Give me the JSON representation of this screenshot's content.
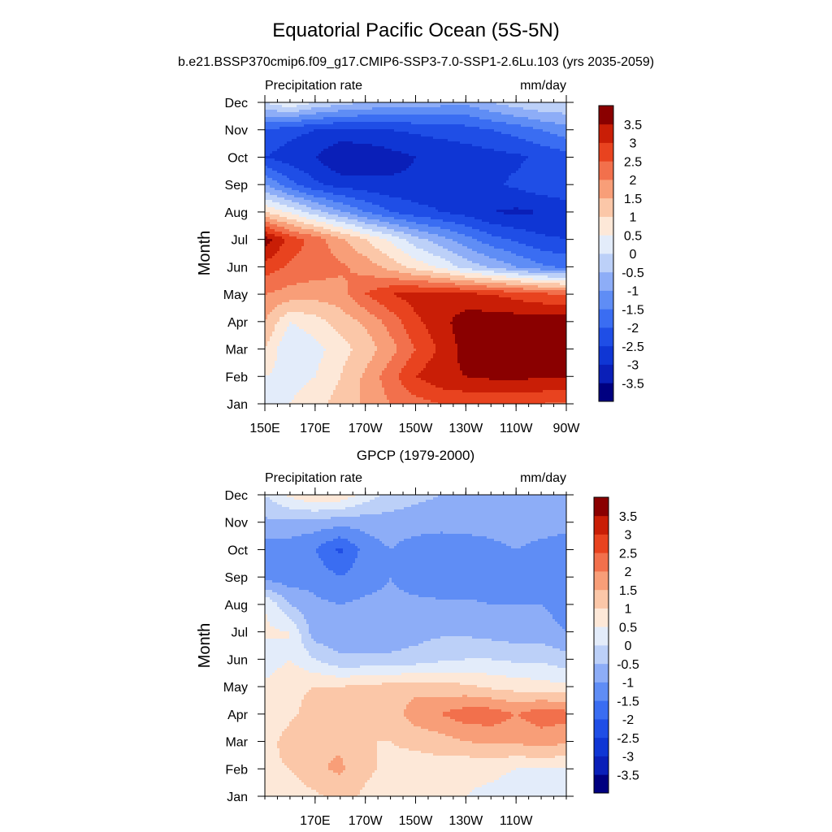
{
  "figure": {
    "title": "Equatorial Pacific Ocean (5S-5N)",
    "subtitle": "b.e21.BSSP370cmip6.f09_g17.CMIP6-SSP3-7.0-SSP1-2.6Lu.103 (yrs 2035-2059)"
  },
  "chart_data": [
    {
      "type": "heatmap",
      "panel": "model",
      "title": "",
      "left_label": "Precipitation rate",
      "right_label": "mm/day",
      "ylabel": "Month",
      "xlabel": "",
      "x_range": [
        150,
        270
      ],
      "x_ticks": [
        150,
        170,
        190,
        210,
        230,
        250,
        270
      ],
      "x_tick_labels": [
        "150E",
        "170E",
        "170W",
        "150W",
        "130W",
        "110W",
        "90W"
      ],
      "y_tick_labels": [
        "Jan",
        "Feb",
        "Mar",
        "Apr",
        "May",
        "Jun",
        "Jul",
        "Aug",
        "Sep",
        "Oct",
        "Nov",
        "Dec"
      ],
      "colorbar_levels": [
        -3.5,
        -3,
        -2.5,
        -2,
        -1.5,
        -1,
        -0.5,
        0,
        0.5,
        1,
        1.5,
        2,
        2.5,
        3,
        3.5
      ],
      "colorbar_labels": [
        "3.5",
        "3",
        "2.5",
        "2",
        "1.5",
        "1",
        "0.5",
        "0",
        "-0.5",
        "-1",
        "-1.5",
        "-2",
        "-2.5",
        "-3",
        "-3.5"
      ],
      "colors": [
        "#000080",
        "#0a1fb8",
        "#0f36d4",
        "#1f4ee6",
        "#3a6df2",
        "#5f8df5",
        "#8dadf7",
        "#bcd0f8",
        "#e3ecfa",
        "#fde8d8",
        "#fbc7a8",
        "#f89e78",
        "#f2704c",
        "#e8431f",
        "#c91e06",
        "#8a0000"
      ],
      "grid": false,
      "data": [
        [
          0.5,
          0.5,
          0.8,
          1.2,
          1.6,
          2.0,
          2.3,
          2.5,
          2.6,
          2.6,
          2.6,
          2.5,
          2.4
        ],
        [
          0.5,
          0.3,
          0.5,
          1.0,
          1.6,
          2.3,
          3.0,
          3.4,
          3.5,
          3.6,
          3.6,
          3.6,
          3.6
        ],
        [
          1.0,
          0.0,
          0.3,
          0.8,
          1.2,
          1.8,
          2.5,
          3.1,
          3.7,
          3.8,
          3.8,
          3.8,
          3.8
        ],
        [
          1.5,
          0.5,
          0.8,
          1.2,
          1.6,
          2.2,
          2.9,
          3.3,
          3.8,
          3.8,
          3.8,
          3.8,
          3.8
        ],
        [
          2.0,
          1.8,
          1.7,
          1.8,
          2.5,
          3.0,
          3.2,
          3.2,
          3.1,
          3.0,
          2.8,
          2.6,
          2.5
        ],
        [
          2.8,
          2.4,
          2.3,
          2.1,
          1.8,
          1.3,
          0.8,
          0.4,
          -0.2,
          -0.6,
          -1.0,
          -1.4,
          -1.6
        ],
        [
          3.8,
          2.8,
          2.3,
          1.6,
          1.0,
          0.4,
          -0.3,
          -0.8,
          -1.3,
          -1.8,
          -2.1,
          -2.4,
          -2.5
        ],
        [
          1.0,
          0.4,
          -0.3,
          -0.9,
          -1.5,
          -2.0,
          -2.3,
          -2.5,
          -2.7,
          -3.0,
          -3.1,
          -3.0,
          -2.9
        ],
        [
          -1.0,
          -1.8,
          -2.4,
          -2.7,
          -2.8,
          -2.9,
          -2.9,
          -2.8,
          -2.7,
          -2.6,
          -2.4,
          -2.2,
          -2.0
        ],
        [
          -2.5,
          -2.8,
          -3.0,
          -3.5,
          -3.4,
          -3.2,
          -3.0,
          -2.9,
          -2.8,
          -2.7,
          -2.6,
          -2.4,
          -2.2
        ],
        [
          -2.0,
          -2.3,
          -2.5,
          -2.6,
          -2.6,
          -2.5,
          -2.4,
          -2.3,
          -2.2,
          -2.0,
          -1.8,
          -1.5,
          -1.2
        ],
        [
          0.0,
          0.5,
          0.0,
          -0.3,
          -0.5,
          -0.7,
          -0.7,
          -0.8,
          -0.9,
          -0.5,
          -0.2,
          0.0,
          0.0
        ]
      ]
    },
    {
      "type": "heatmap",
      "panel": "observations",
      "title": "GPCP (1979-2000)",
      "left_label": "Precipitation rate",
      "right_label": "mm/day",
      "ylabel": "Month",
      "xlabel": "",
      "x_range": [
        150,
        270
      ],
      "x_ticks": [
        170,
        190,
        210,
        230,
        250
      ],
      "x_tick_labels": [
        "170E",
        "170W",
        "150W",
        "130W",
        "110W"
      ],
      "y_tick_labels": [
        "Jan",
        "Feb",
        "Mar",
        "Apr",
        "May",
        "Jun",
        "Jul",
        "Aug",
        "Sep",
        "Oct",
        "Nov",
        "Dec"
      ],
      "colorbar_levels": [
        -3.5,
        -3,
        -2.5,
        -2,
        -1.5,
        -1,
        -0.5,
        0,
        0.5,
        1,
        1.5,
        2,
        2.5,
        3,
        3.5
      ],
      "colorbar_labels": [
        "3.5",
        "3",
        "2.5",
        "2",
        "1.5",
        "1",
        "0.5",
        "0",
        "-0.5",
        "-1",
        "-1.5",
        "-2",
        "-2.5",
        "-3",
        "-3.5"
      ],
      "colors": [
        "#000080",
        "#0a1fb8",
        "#0f36d4",
        "#1f4ee6",
        "#3a6df2",
        "#5f8df5",
        "#8dadf7",
        "#bcd0f8",
        "#e3ecfa",
        "#fde8d8",
        "#fbc7a8",
        "#f89e78",
        "#f2704c",
        "#e8431f",
        "#c91e06",
        "#8a0000"
      ],
      "grid": false,
      "data": [
        [
          0.8,
          0.7,
          0.9,
          1.2,
          0.9,
          0.7,
          0.6,
          0.5,
          0.5,
          0.4,
          0.3,
          0.3,
          0.3
        ],
        [
          0.9,
          1.0,
          1.4,
          1.6,
          1.1,
          0.9,
          0.8,
          0.7,
          0.6,
          0.6,
          0.5,
          0.5,
          0.5
        ],
        [
          0.8,
          1.2,
          1.5,
          1.4,
          1.0,
          1.0,
          1.1,
          1.3,
          1.5,
          1.6,
          1.6,
          1.7,
          1.6
        ],
        [
          0.6,
          0.9,
          1.2,
          1.2,
          1.0,
          1.2,
          1.8,
          2.0,
          2.3,
          2.3,
          2.0,
          2.3,
          2.2
        ],
        [
          0.6,
          0.9,
          1.0,
          1.0,
          1.1,
          1.2,
          1.3,
          1.2,
          1.1,
          0.9,
          0.8,
          0.7,
          0.6
        ],
        [
          0.2,
          0.5,
          0.0,
          -0.4,
          -0.4,
          -0.4,
          -0.3,
          -0.1,
          0.0,
          0.0,
          -0.1,
          -0.1,
          -0.3
        ],
        [
          0.6,
          0.5,
          -0.8,
          -0.9,
          -0.9,
          -0.8,
          -0.7,
          -0.6,
          -0.6,
          -0.7,
          -0.8,
          -0.8,
          -1.0
        ],
        [
          0.5,
          -0.5,
          -0.9,
          -1.0,
          -0.9,
          -0.9,
          -0.9,
          -0.9,
          -0.9,
          -1.0,
          -1.0,
          -1.0,
          -1.2
        ],
        [
          -1.2,
          -1.3,
          -1.2,
          -1.5,
          -1.2,
          -1.0,
          -1.2,
          -1.4,
          -1.4,
          -1.3,
          -1.0,
          -1.1,
          -1.3
        ],
        [
          -1.3,
          -1.3,
          -1.5,
          -2.1,
          -1.3,
          -1.0,
          -1.3,
          -1.5,
          -1.4,
          -1.2,
          -1.0,
          -1.2,
          -1.3
        ],
        [
          -0.6,
          -0.6,
          -0.7,
          -0.8,
          -0.8,
          -0.7,
          -0.7,
          -0.7,
          -0.7,
          -0.7,
          -0.6,
          -0.7,
          -0.8
        ],
        [
          0.0,
          0.6,
          1.0,
          0.9,
          0.3,
          -0.2,
          -0.4,
          -0.5,
          -0.5,
          -0.5,
          -0.5,
          -0.5,
          -0.6
        ]
      ]
    }
  ]
}
